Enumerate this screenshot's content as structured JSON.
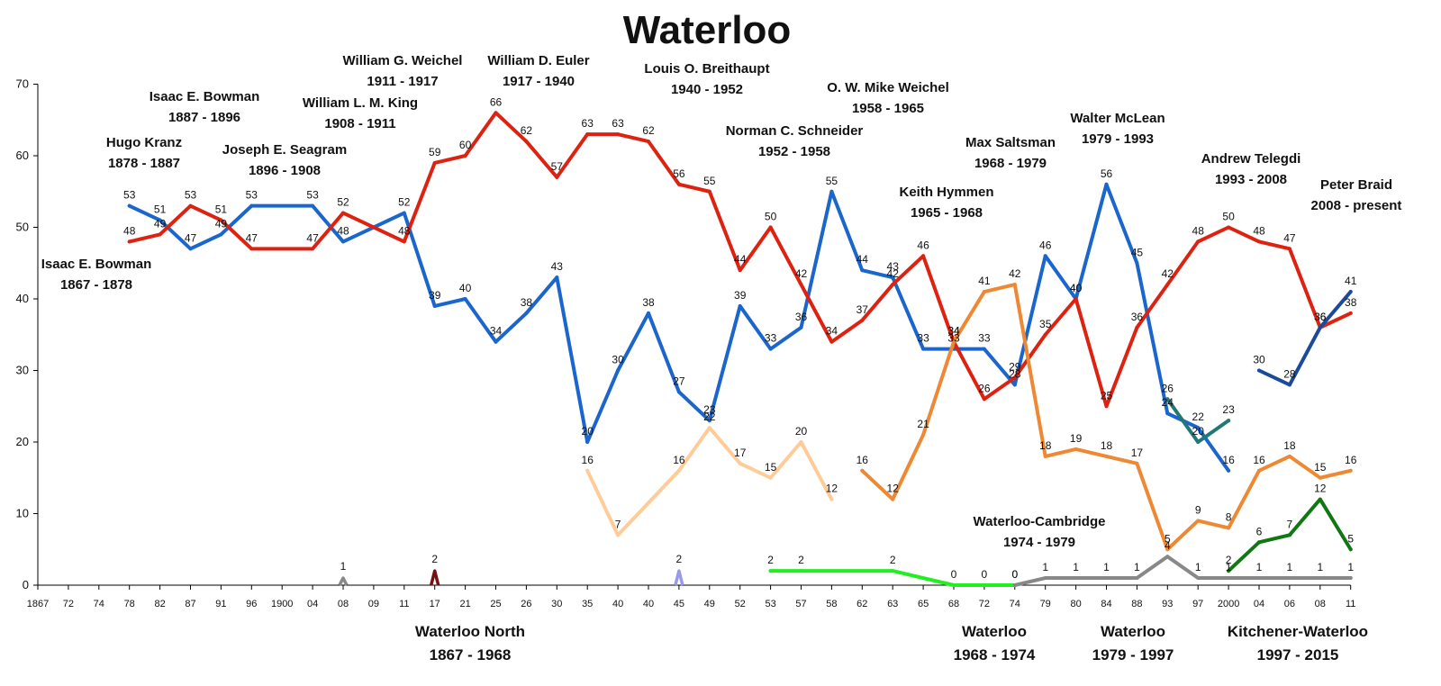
{
  "chart_data": {
    "type": "line",
    "title": "Waterloo",
    "ylim": [
      0,
      70
    ],
    "yticks": [
      0,
      10,
      20,
      30,
      40,
      50,
      60,
      70
    ],
    "grid": false,
    "categories": [
      "1867",
      "72",
      "74",
      "78",
      "82",
      "87",
      "91",
      "96",
      "1900",
      "04",
      "08",
      "09",
      "11",
      "17",
      "21",
      "25",
      "26",
      "30",
      "35",
      "40",
      "40",
      "45",
      "49",
      "52",
      "53",
      "57",
      "58",
      "62",
      "63",
      "65",
      "68",
      "72",
      "74",
      "79",
      "80",
      "84",
      "88",
      "93",
      "97",
      "2000",
      "04",
      "06",
      "08",
      "11"
    ],
    "series": [
      {
        "color": "#1a66cc",
        "points": [
          [
            3,
            53
          ],
          [
            4,
            51
          ],
          [
            5,
            47
          ],
          [
            6,
            49
          ],
          [
            7,
            53
          ],
          [
            9,
            53
          ],
          [
            10,
            48
          ],
          [
            12,
            52
          ],
          [
            13,
            39
          ],
          [
            14,
            40
          ],
          [
            15,
            34
          ],
          [
            16,
            38
          ],
          [
            17,
            43
          ],
          [
            18,
            20
          ],
          [
            19,
            30
          ],
          [
            20,
            38
          ],
          [
            21,
            27
          ],
          [
            22,
            23
          ],
          [
            23,
            39
          ],
          [
            24,
            33
          ],
          [
            25,
            36
          ],
          [
            26,
            55
          ],
          [
            27,
            44
          ],
          [
            28,
            43
          ],
          [
            29,
            33
          ],
          [
            30,
            33
          ],
          [
            31,
            33
          ],
          [
            32,
            28
          ],
          [
            33,
            46
          ],
          [
            34,
            40
          ],
          [
            35,
            56
          ],
          [
            36,
            45
          ],
          [
            37,
            24
          ],
          [
            38,
            22
          ],
          [
            39,
            16
          ]
        ]
      },
      {
        "color": "#dd2211",
        "points": [
          [
            3,
            48
          ],
          [
            4,
            49
          ],
          [
            5,
            53
          ],
          [
            6,
            51
          ],
          [
            7,
            47
          ],
          [
            9,
            47
          ],
          [
            10,
            52
          ],
          [
            12,
            48
          ],
          [
            13,
            59
          ],
          [
            14,
            60
          ],
          [
            15,
            66
          ],
          [
            16,
            62
          ],
          [
            17,
            57
          ],
          [
            18,
            63
          ],
          [
            19,
            63
          ],
          [
            20,
            62
          ],
          [
            21,
            56
          ],
          [
            22,
            55
          ],
          [
            23,
            44
          ],
          [
            24,
            50
          ],
          [
            25,
            42
          ],
          [
            26,
            34
          ],
          [
            27,
            37
          ],
          [
            28,
            42
          ],
          [
            29,
            46
          ],
          [
            30,
            34
          ],
          [
            31,
            26
          ],
          [
            32,
            29
          ],
          [
            33,
            35
          ],
          [
            34,
            40
          ],
          [
            35,
            25
          ],
          [
            36,
            36
          ],
          [
            37,
            42
          ],
          [
            38,
            48
          ],
          [
            39,
            50
          ],
          [
            40,
            48
          ],
          [
            41,
            47
          ],
          [
            42,
            36
          ],
          [
            43,
            38
          ]
        ]
      },
      {
        "color": "#ffcc99",
        "points": [
          [
            18,
            16
          ],
          [
            19,
            7
          ],
          [
            21,
            16
          ],
          [
            22,
            22
          ],
          [
            23,
            17
          ],
          [
            24,
            15
          ],
          [
            25,
            20
          ],
          [
            26,
            12
          ]
        ]
      },
      {
        "color": "#ee8833",
        "points": [
          [
            27,
            16
          ],
          [
            28,
            12
          ],
          [
            29,
            21
          ],
          [
            30,
            34
          ],
          [
            31,
            41
          ],
          [
            32,
            42
          ],
          [
            33,
            18
          ],
          [
            34,
            19
          ],
          [
            35,
            18
          ],
          [
            36,
            17
          ],
          [
            37,
            5
          ],
          [
            38,
            9
          ],
          [
            39,
            8
          ],
          [
            40,
            16
          ],
          [
            41,
            18
          ],
          [
            42,
            15
          ],
          [
            43,
            16
          ]
        ]
      },
      {
        "color": "#22ee22",
        "points": [
          [
            24,
            2
          ],
          [
            25,
            2
          ],
          [
            28,
            2
          ],
          [
            30,
            0
          ],
          [
            31,
            0
          ],
          [
            32,
            0
          ]
        ]
      },
      {
        "color": "#888888",
        "points": [
          [
            32,
            0
          ],
          [
            33,
            1
          ],
          [
            34,
            1
          ],
          [
            35,
            1
          ],
          [
            36,
            1
          ],
          [
            37,
            4
          ],
          [
            38,
            1
          ],
          [
            39,
            1
          ],
          [
            40,
            1
          ],
          [
            41,
            1
          ],
          [
            42,
            1
          ],
          [
            43,
            1
          ]
        ]
      },
      {
        "color": "#227777",
        "points": [
          [
            37,
            26
          ],
          [
            38,
            20
          ],
          [
            39,
            23
          ]
        ]
      },
      {
        "color": "#117711",
        "points": [
          [
            39,
            2
          ],
          [
            40,
            6
          ],
          [
            41,
            7
          ],
          [
            42,
            12
          ],
          [
            43,
            5
          ]
        ]
      },
      {
        "color": "#1a4a99",
        "points": [
          [
            40,
            30
          ],
          [
            41,
            28
          ],
          [
            42,
            36
          ],
          [
            43,
            41
          ]
        ]
      }
    ],
    "spikes": [
      {
        "color": "#888888",
        "x": 10,
        "value": 1
      },
      {
        "color": "#771111",
        "x": 13,
        "value": 2
      },
      {
        "color": "#9999ee",
        "x": 21,
        "value": 2
      }
    ],
    "annotations": [
      {
        "lines": [
          "Isaac E. Bowman",
          "1867 - 1878"
        ]
      },
      {
        "lines": [
          "Hugo Kranz",
          "1878 - 1887"
        ]
      },
      {
        "lines": [
          "Isaac E. Bowman",
          "1887 - 1896"
        ]
      },
      {
        "lines": [
          "Joseph E. Seagram",
          "1896 - 1908"
        ]
      },
      {
        "lines": [
          "William L. M. King",
          "1908 - 1911"
        ]
      },
      {
        "lines": [
          "William G. Weichel",
          "1911 - 1917"
        ]
      },
      {
        "lines": [
          "William D. Euler",
          "1917 - 1940"
        ]
      },
      {
        "lines": [
          "Louis O. Breithaupt",
          "1940 - 1952"
        ]
      },
      {
        "lines": [
          "Norman C. Schneider",
          "1952 - 1958"
        ]
      },
      {
        "lines": [
          "O. W. Mike Weichel",
          "1958 - 1965"
        ]
      },
      {
        "lines": [
          "Keith Hymmen",
          "1965 - 1968"
        ]
      },
      {
        "lines": [
          "Max Saltsman",
          "1968 - 1979"
        ]
      },
      {
        "lines": [
          "Walter McLean",
          "1979 - 1993"
        ]
      },
      {
        "lines": [
          "Andrew Telegdi",
          "1993 - 2008"
        ]
      },
      {
        "lines": [
          "Peter Braid",
          "2008 - present"
        ]
      },
      {
        "lines": [
          "Waterloo-Cambridge",
          "1974 - 1979"
        ]
      }
    ],
    "ridings": [
      {
        "lines": [
          "Waterloo North",
          "1867 - 1968"
        ]
      },
      {
        "lines": [
          "Waterloo",
          "1968 - 1974"
        ]
      },
      {
        "lines": [
          "Waterloo",
          "1979 - 1997"
        ]
      },
      {
        "lines": [
          "Kitchener-Waterloo",
          "1997 - 2015"
        ]
      }
    ]
  }
}
